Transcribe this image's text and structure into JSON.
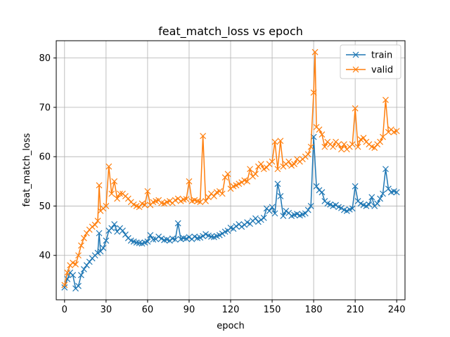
{
  "chart_data": {
    "type": "line",
    "title": "feat_match_loss vs epoch",
    "xlabel": "epoch",
    "ylabel": "feat_match_loss",
    "xlim": [
      -6,
      246
    ],
    "ylim": [
      31,
      83.5
    ],
    "xticks": [
      0,
      30,
      60,
      90,
      120,
      150,
      180,
      210,
      240
    ],
    "yticks": [
      40,
      50,
      60,
      70,
      80
    ],
    "grid": true,
    "legend": "top-right",
    "series": [
      {
        "name": "train",
        "color": "#1f77b4",
        "points": [
          [
            0,
            33.5
          ],
          [
            2,
            35.2
          ],
          [
            4,
            36.5
          ],
          [
            6,
            36
          ],
          [
            8,
            33.3
          ],
          [
            10,
            33.8
          ],
          [
            12,
            36
          ],
          [
            14,
            37.2
          ],
          [
            16,
            38
          ],
          [
            18,
            38.7
          ],
          [
            20,
            39.4
          ],
          [
            22,
            40
          ],
          [
            24,
            40.5
          ],
          [
            25,
            44.5
          ],
          [
            26,
            40.8
          ],
          [
            28,
            41.5
          ],
          [
            30,
            43
          ],
          [
            32,
            45
          ],
          [
            34,
            45.5
          ],
          [
            36,
            46.3
          ],
          [
            38,
            44.8
          ],
          [
            40,
            45.5
          ],
          [
            42,
            45
          ],
          [
            44,
            44.2
          ],
          [
            46,
            43.5
          ],
          [
            48,
            43
          ],
          [
            50,
            42.8
          ],
          [
            52,
            42.6
          ],
          [
            54,
            42.5
          ],
          [
            56,
            42.4
          ],
          [
            58,
            42.6
          ],
          [
            60,
            42.8
          ],
          [
            62,
            44.1
          ],
          [
            64,
            43.2
          ],
          [
            66,
            43.3
          ],
          [
            68,
            43.8
          ],
          [
            70,
            43.4
          ],
          [
            72,
            43.1
          ],
          [
            74,
            43.2
          ],
          [
            76,
            43
          ],
          [
            78,
            43.4
          ],
          [
            80,
            43.2
          ],
          [
            82,
            46.5
          ],
          [
            84,
            43.3
          ],
          [
            86,
            43.5
          ],
          [
            88,
            43.4
          ],
          [
            90,
            43.7
          ],
          [
            92,
            43.3
          ],
          [
            94,
            43.8
          ],
          [
            96,
            43.5
          ],
          [
            98,
            43.6
          ],
          [
            100,
            43.9
          ],
          [
            102,
            44.3
          ],
          [
            104,
            44
          ],
          [
            106,
            43.8
          ],
          [
            108,
            43.7
          ],
          [
            110,
            43.9
          ],
          [
            112,
            44.1
          ],
          [
            114,
            44.4
          ],
          [
            116,
            44.8
          ],
          [
            118,
            45
          ],
          [
            120,
            45.6
          ],
          [
            122,
            45.4
          ],
          [
            124,
            45.9
          ],
          [
            126,
            46.3
          ],
          [
            128,
            45.8
          ],
          [
            130,
            46.2
          ],
          [
            132,
            46.7
          ],
          [
            134,
            46.4
          ],
          [
            136,
            47
          ],
          [
            138,
            47.5
          ],
          [
            140,
            46.8
          ],
          [
            142,
            47.2
          ],
          [
            144,
            47.6
          ],
          [
            146,
            49.5
          ],
          [
            148,
            49
          ],
          [
            150,
            49.8
          ],
          [
            152,
            48.5
          ],
          [
            154,
            54.5
          ],
          [
            156,
            52
          ],
          [
            158,
            48
          ],
          [
            160,
            49
          ],
          [
            162,
            48.6
          ],
          [
            164,
            48
          ],
          [
            166,
            48.2
          ],
          [
            168,
            48.4
          ],
          [
            170,
            48.1
          ],
          [
            172,
            48.3
          ],
          [
            174,
            48.5
          ],
          [
            176,
            49.2
          ],
          [
            178,
            50
          ],
          [
            180,
            64
          ],
          [
            182,
            54
          ],
          [
            184,
            53.2
          ],
          [
            186,
            52.8
          ],
          [
            188,
            51
          ],
          [
            190,
            50.5
          ],
          [
            192,
            50.3
          ],
          [
            194,
            50
          ],
          [
            196,
            50.2
          ],
          [
            198,
            49.8
          ],
          [
            200,
            49.6
          ],
          [
            202,
            49.2
          ],
          [
            204,
            49
          ],
          [
            206,
            49.3
          ],
          [
            208,
            49.5
          ],
          [
            210,
            54
          ],
          [
            212,
            51
          ],
          [
            214,
            50.5
          ],
          [
            216,
            50.2
          ],
          [
            218,
            50
          ],
          [
            220,
            50.3
          ],
          [
            222,
            51.8
          ],
          [
            224,
            50
          ],
          [
            226,
            50.5
          ],
          [
            228,
            51.5
          ],
          [
            230,
            52.5
          ],
          [
            232,
            57.5
          ],
          [
            234,
            53.5
          ],
          [
            236,
            52.8
          ],
          [
            238,
            53
          ],
          [
            240,
            52.8
          ]
        ]
      },
      {
        "name": "valid",
        "color": "#ff7f0e",
        "points": [
          [
            0,
            34
          ],
          [
            2,
            36.5
          ],
          [
            4,
            38
          ],
          [
            6,
            38.5
          ],
          [
            8,
            38.2
          ],
          [
            10,
            40
          ],
          [
            12,
            42
          ],
          [
            14,
            43.5
          ],
          [
            16,
            44.5
          ],
          [
            18,
            45.2
          ],
          [
            20,
            45.8
          ],
          [
            22,
            46.2
          ],
          [
            24,
            47
          ],
          [
            25,
            54.2
          ],
          [
            26,
            49
          ],
          [
            28,
            49.5
          ],
          [
            30,
            50
          ],
          [
            32,
            58
          ],
          [
            34,
            52.5
          ],
          [
            36,
            55
          ],
          [
            38,
            51.5
          ],
          [
            40,
            52.5
          ],
          [
            42,
            52.5
          ],
          [
            44,
            52
          ],
          [
            46,
            51.5
          ],
          [
            48,
            50.8
          ],
          [
            50,
            50.3
          ],
          [
            52,
            50
          ],
          [
            54,
            49.8
          ],
          [
            56,
            50.5
          ],
          [
            58,
            50.2
          ],
          [
            60,
            53
          ],
          [
            62,
            50.2
          ],
          [
            64,
            50.8
          ],
          [
            66,
            51
          ],
          [
            68,
            51.2
          ],
          [
            70,
            50.6
          ],
          [
            72,
            50.5
          ],
          [
            74,
            50.8
          ],
          [
            76,
            51
          ],
          [
            78,
            50.6
          ],
          [
            80,
            51.2
          ],
          [
            82,
            51.5
          ],
          [
            84,
            51
          ],
          [
            86,
            51.3
          ],
          [
            88,
            51.4
          ],
          [
            90,
            55
          ],
          [
            92,
            51
          ],
          [
            94,
            51.2
          ],
          [
            96,
            51
          ],
          [
            98,
            50.8
          ],
          [
            100,
            64.2
          ],
          [
            102,
            51
          ],
          [
            104,
            51.8
          ],
          [
            106,
            52.5
          ],
          [
            108,
            52
          ],
          [
            110,
            52.8
          ],
          [
            112,
            53
          ],
          [
            114,
            52.5
          ],
          [
            116,
            55.8
          ],
          [
            118,
            56.5
          ],
          [
            120,
            53.5
          ],
          [
            122,
            54
          ],
          [
            124,
            54.2
          ],
          [
            126,
            54.5
          ],
          [
            128,
            54.8
          ],
          [
            130,
            55.2
          ],
          [
            132,
            55
          ],
          [
            134,
            57.5
          ],
          [
            136,
            56
          ],
          [
            138,
            56.5
          ],
          [
            140,
            58
          ],
          [
            142,
            58.5
          ],
          [
            144,
            57.5
          ],
          [
            146,
            57.8
          ],
          [
            148,
            58.5
          ],
          [
            150,
            59
          ],
          [
            152,
            63
          ],
          [
            154,
            57.5
          ],
          [
            156,
            63.2
          ],
          [
            158,
            58
          ],
          [
            160,
            58.5
          ],
          [
            162,
            59
          ],
          [
            164,
            58.2
          ],
          [
            166,
            58.5
          ],
          [
            168,
            59.5
          ],
          [
            170,
            59
          ],
          [
            172,
            59.5
          ],
          [
            174,
            60
          ],
          [
            176,
            60.5
          ],
          [
            178,
            62
          ],
          [
            180,
            73
          ],
          [
            181,
            81.2
          ],
          [
            182,
            66
          ],
          [
            184,
            65.5
          ],
          [
            186,
            64.5
          ],
          [
            188,
            62
          ],
          [
            190,
            63
          ],
          [
            192,
            62.5
          ],
          [
            194,
            62
          ],
          [
            196,
            63
          ],
          [
            198,
            62.5
          ],
          [
            200,
            61.5
          ],
          [
            202,
            62.5
          ],
          [
            204,
            61.5
          ],
          [
            206,
            62
          ],
          [
            208,
            62.5
          ],
          [
            210,
            69.8
          ],
          [
            212,
            62
          ],
          [
            214,
            63.5
          ],
          [
            216,
            63.8
          ],
          [
            218,
            63
          ],
          [
            220,
            62.5
          ],
          [
            222,
            62
          ],
          [
            224,
            61.8
          ],
          [
            226,
            62.5
          ],
          [
            228,
            63
          ],
          [
            230,
            64
          ],
          [
            232,
            71.5
          ],
          [
            234,
            65
          ],
          [
            236,
            65.5
          ],
          [
            238,
            65
          ],
          [
            240,
            65.2
          ]
        ]
      }
    ]
  }
}
